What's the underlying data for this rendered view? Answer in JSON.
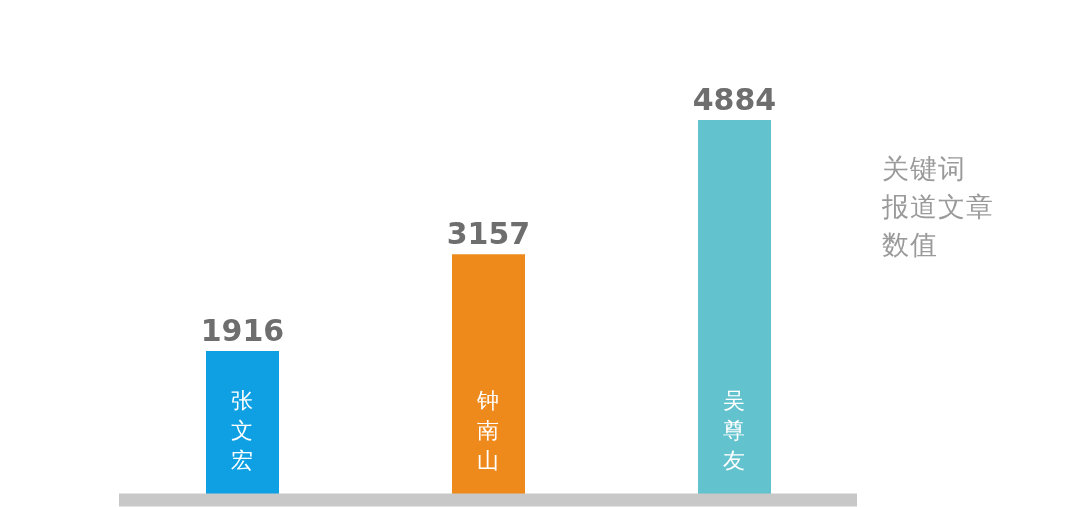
{
  "chart_data": {
    "type": "bar",
    "annotations": [
      "关键词",
      "报道文章",
      "数值"
    ],
    "categories": [
      "张文宏",
      "钟南山",
      "吴尊友"
    ],
    "values": [
      1916,
      3157,
      4884
    ],
    "colors": [
      "#0ea0e2",
      "#ee8a1c",
      "#62c2cd"
    ],
    "data_labels": true
  }
}
